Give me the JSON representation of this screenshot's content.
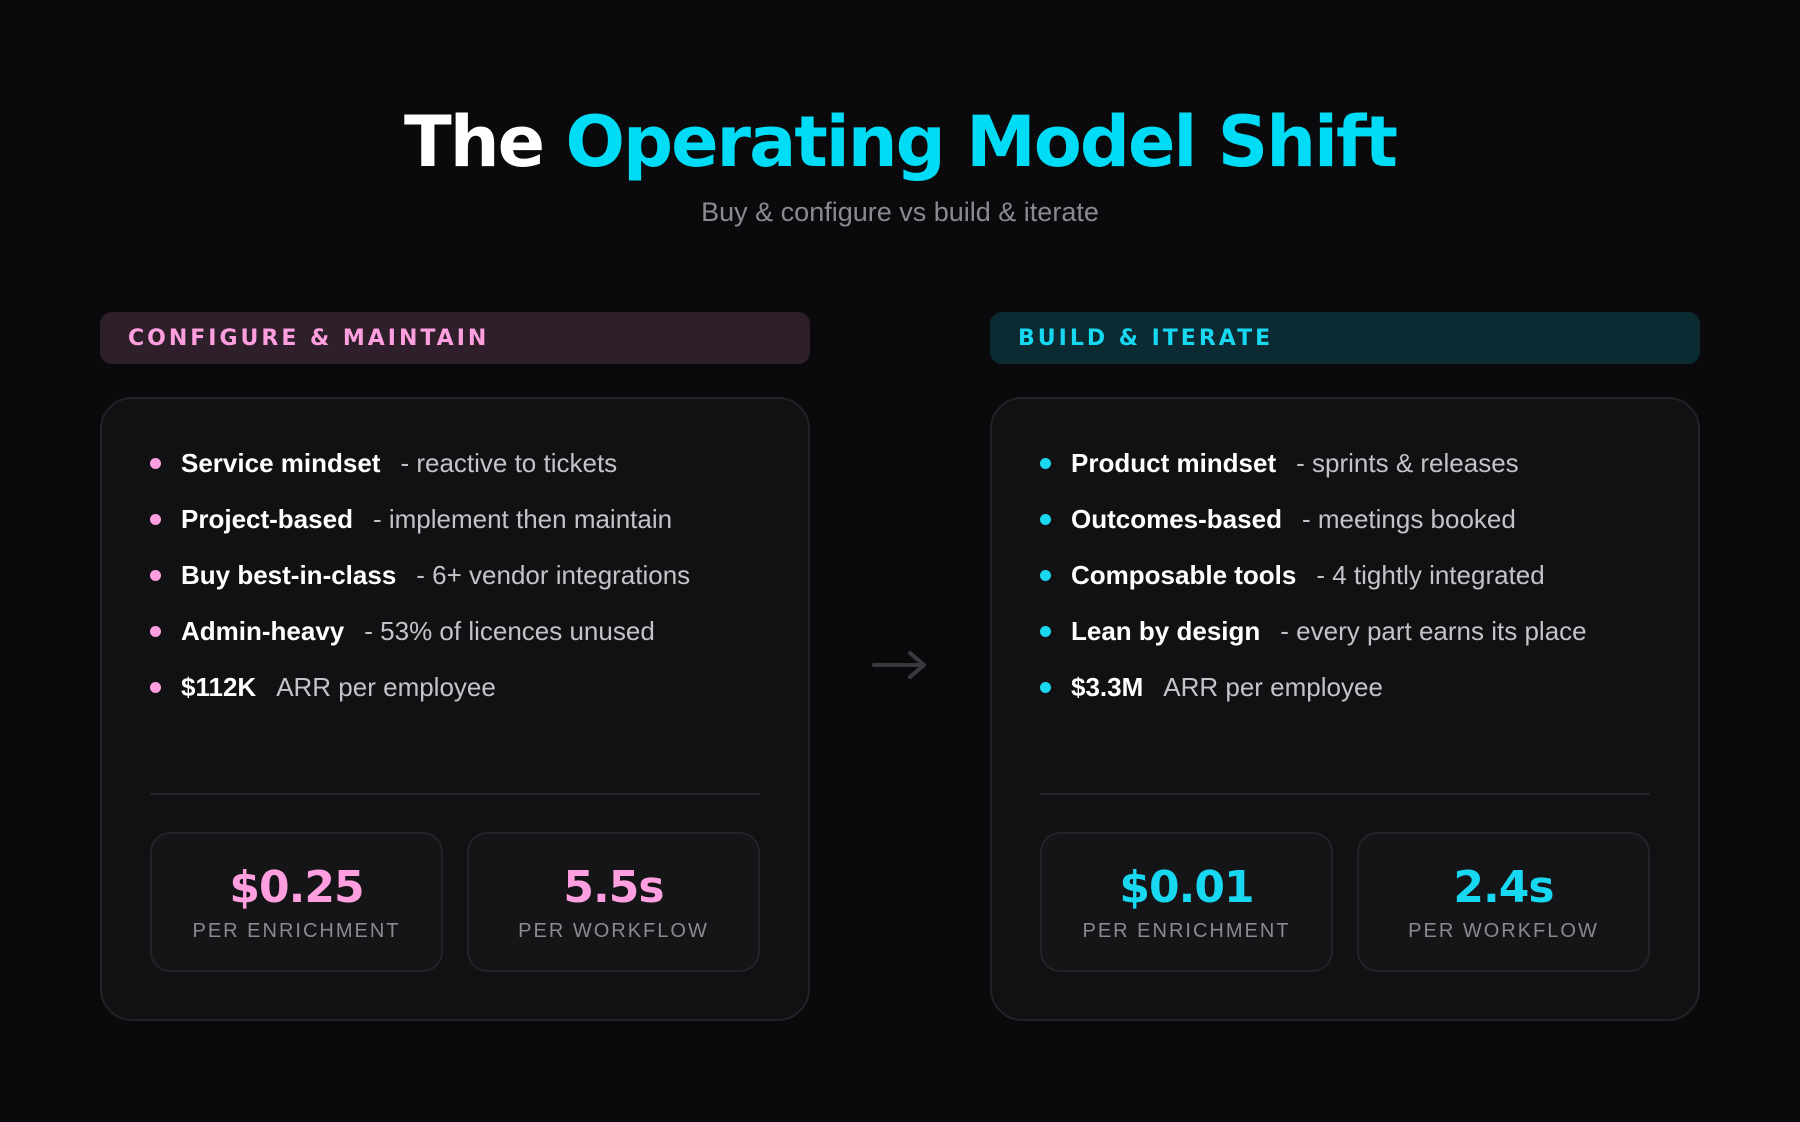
{
  "header": {
    "title_prefix": "The",
    "title_accent": "Operating Model Shift",
    "subtitle": "Buy & configure vs build & iterate"
  },
  "left": {
    "tag": "CONFIGURE & MAINTAIN",
    "bullets": [
      {
        "strong": "Service mindset",
        "rest": "- reactive to tickets"
      },
      {
        "strong": "Project-based",
        "rest": "- implement then maintain"
      },
      {
        "strong": "Buy best-in-class",
        "rest": "- 6+ vendor integrations"
      },
      {
        "strong": "Admin-heavy",
        "rest": "- 53% of licences unused"
      },
      {
        "strong": "$112K",
        "rest": "ARR per employee"
      }
    ],
    "stats": [
      {
        "value": "$0.25",
        "label": "PER ENRICHMENT"
      },
      {
        "value": "5.5s",
        "label": "PER WORKFLOW"
      }
    ]
  },
  "right": {
    "tag": "BUILD & ITERATE",
    "bullets": [
      {
        "strong": "Product mindset",
        "rest": "- sprints & releases"
      },
      {
        "strong": "Outcomes-based",
        "rest": "- meetings booked"
      },
      {
        "strong": "Composable tools",
        "rest": "- 4 tightly integrated"
      },
      {
        "strong": "Lean by design",
        "rest": "- every part earns its place"
      },
      {
        "strong": "$3.3M",
        "rest": "ARR per employee"
      }
    ],
    "stats": [
      {
        "value": "$0.01",
        "label": "PER ENRICHMENT"
      },
      {
        "value": "2.4s",
        "label": "PER WORKFLOW"
      }
    ]
  },
  "icons": {
    "arrow": "arrow-right-icon",
    "bullet": "bullet-dot-icon"
  },
  "colors": {
    "background": "#0a0a0c",
    "accent_cyan": "#00dcf5",
    "accent_pink": "#ff9fe0"
  }
}
